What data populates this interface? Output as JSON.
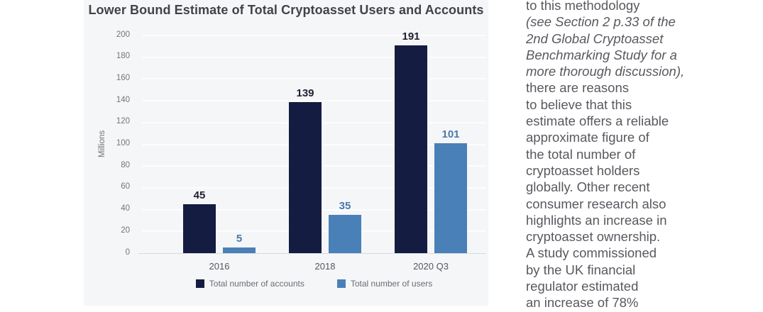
{
  "chart": {
    "title": "Lower Bound Estimate of Total Cryptoasset Users and Accounts",
    "y_axis_label": "Millions"
  },
  "chart_data": {
    "type": "bar",
    "title": "Lower Bound Estimate of Total Cryptoasset Users and Accounts",
    "categories": [
      "2016",
      "2018",
      "2020 Q3"
    ],
    "series": [
      {
        "name": "Total number of accounts",
        "values": [
          45,
          139,
          191
        ],
        "color": "#141c41",
        "label_color": "#1d2030"
      },
      {
        "name": "Total number of users",
        "values": [
          5,
          35,
          101
        ],
        "color": "#4a80b8",
        "label_color": "#4a79ab"
      }
    ],
    "xlabel": "",
    "ylabel": "Millions",
    "ylim": [
      0,
      200
    ],
    "ytick_step": 20,
    "grid": true,
    "legend_position": "bottom"
  },
  "sidebar_text": {
    "lines": [
      {
        "text": "to this methodology",
        "italic": false
      },
      {
        "text": "(see Section 2 p.33 of the",
        "italic": true
      },
      {
        "text": "2nd Global Cryptoasset",
        "italic": true
      },
      {
        "text": "Benchmarking Study for a",
        "italic": true
      },
      {
        "text": "more thorough discussion),",
        "italic": true
      },
      {
        "text": "there are reasons",
        "italic": false
      },
      {
        "text": "to believe that this",
        "italic": false
      },
      {
        "text": "estimate offers a reliable",
        "italic": false
      },
      {
        "text": "approximate figure of",
        "italic": false
      },
      {
        "text": "the total number of",
        "italic": false
      },
      {
        "text": "cryptoasset holders",
        "italic": false
      },
      {
        "text": "globally. Other recent",
        "italic": false
      },
      {
        "text": "consumer research also",
        "italic": false
      },
      {
        "text": "highlights an increase in",
        "italic": false
      },
      {
        "text": "cryptoasset ownership.",
        "italic": false
      },
      {
        "text": "A study commissioned",
        "italic": false
      },
      {
        "text": "by the UK financial",
        "italic": false
      },
      {
        "text": "regulator estimated",
        "italic": false
      },
      {
        "text": "an increase of 78%",
        "italic": false
      }
    ]
  }
}
